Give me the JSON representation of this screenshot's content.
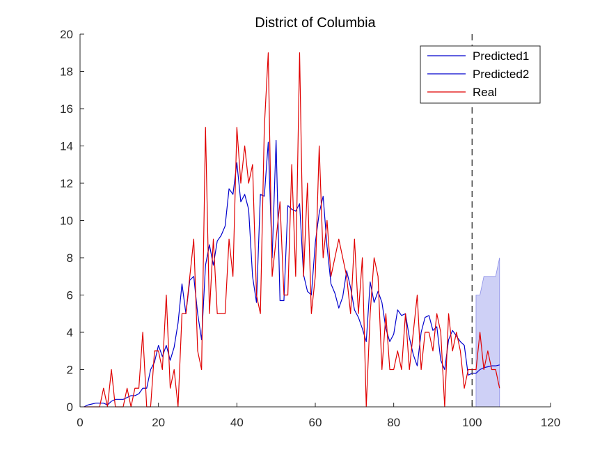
{
  "chart_data": {
    "type": "line",
    "title": "District of Columbia",
    "xlabel": "",
    "ylabel": "",
    "xlim": [
      0,
      120
    ],
    "ylim": [
      0,
      20
    ],
    "xticks": [
      0,
      20,
      40,
      60,
      80,
      100,
      120
    ],
    "yticks": [
      0,
      2,
      4,
      6,
      8,
      10,
      12,
      14,
      16,
      18,
      20
    ],
    "grid": false,
    "legend_position": "top-right",
    "vline_x": 100,
    "colors": {
      "predicted": "#0000cd",
      "real": "#e00000",
      "band": "#c6c8f5",
      "vline": "#404040"
    },
    "series": [
      {
        "name": "Predicted1",
        "color": "#0000cd",
        "x": [
          1,
          2,
          3,
          4,
          5,
          6,
          7,
          8,
          9,
          10,
          11,
          12,
          13,
          14,
          15,
          16,
          17,
          18,
          19,
          20,
          21,
          22,
          23,
          24,
          25,
          26,
          27,
          28,
          29,
          30,
          31,
          32,
          33,
          34,
          35,
          36,
          37,
          38,
          39,
          40,
          41,
          42,
          43,
          44,
          45,
          46,
          47,
          48,
          49,
          50,
          51,
          52,
          53,
          54,
          55,
          56,
          57,
          58,
          59,
          60,
          61,
          62,
          63,
          64,
          65,
          66,
          67,
          68,
          69,
          70,
          71,
          72,
          73,
          74,
          75,
          76,
          77,
          78,
          79,
          80,
          81,
          82,
          83,
          84,
          85,
          86,
          87,
          88,
          89,
          90,
          91,
          92,
          93,
          94,
          95,
          96,
          97,
          98,
          99,
          100
        ],
        "values": [
          0,
          0.1,
          0.15,
          0.2,
          0.2,
          0.2,
          0.1,
          0.3,
          0.4,
          0.4,
          0.4,
          0.5,
          0.6,
          0.6,
          0.7,
          1.0,
          1.0,
          2.0,
          2.4,
          3.3,
          2.7,
          3.3,
          2.5,
          3.2,
          4.5,
          6.6,
          5.0,
          6.8,
          7.0,
          5.0,
          3.6,
          7.6,
          8.7,
          7.6,
          8.9,
          9.2,
          9.7,
          11.7,
          11.4,
          13.1,
          11.0,
          11.4,
          10.6,
          7.0,
          5.6,
          11.4,
          11.3,
          14.2,
          8.0,
          14.3,
          5.7,
          5.7,
          10.8,
          10.6,
          10.5,
          10.9,
          7.1,
          6.2,
          6.0,
          8.8,
          10.4,
          11.3,
          8.6,
          6.6,
          6.1,
          5.3,
          5.9,
          7.3,
          6.4,
          5.2,
          4.8,
          4.2,
          3.5,
          6.7,
          5.6,
          6.2,
          5.6,
          4.2,
          3.5,
          3.9,
          5.2,
          4.9,
          5.0,
          3.7,
          2.8,
          2.2,
          4.0,
          4.8,
          4.9,
          4.1,
          4.3,
          2.5,
          2.0,
          3.6,
          4.1,
          3.8,
          3.5,
          3.3,
          1.7,
          1.8
        ]
      },
      {
        "name": "Predicted2",
        "color": "#0000cd",
        "x": [
          100,
          101,
          102,
          103,
          104,
          105,
          106,
          107
        ],
        "values": [
          1.8,
          1.8,
          2.0,
          2.1,
          2.15,
          2.2,
          2.2,
          2.25
        ]
      },
      {
        "name": "Real",
        "color": "#e00000",
        "x": [
          1,
          2,
          3,
          4,
          5,
          6,
          7,
          8,
          9,
          10,
          11,
          12,
          13,
          14,
          15,
          16,
          17,
          18,
          19,
          20,
          21,
          22,
          23,
          24,
          25,
          26,
          27,
          28,
          29,
          30,
          31,
          32,
          33,
          34,
          35,
          36,
          37,
          38,
          39,
          40,
          41,
          42,
          43,
          44,
          45,
          46,
          47,
          48,
          49,
          50,
          51,
          52,
          53,
          54,
          55,
          56,
          57,
          58,
          59,
          60,
          61,
          62,
          63,
          64,
          65,
          66,
          67,
          68,
          69,
          70,
          71,
          72,
          73,
          74,
          75,
          76,
          77,
          78,
          79,
          80,
          81,
          82,
          83,
          84,
          85,
          86,
          87,
          88,
          89,
          90,
          91,
          92,
          93,
          94,
          95,
          96,
          97,
          98,
          99,
          100,
          101,
          102,
          103,
          104,
          105,
          106,
          107
        ],
        "values": [
          0,
          0,
          0,
          0,
          0,
          1,
          0,
          2,
          0,
          0,
          0,
          1,
          0,
          1,
          1,
          4,
          0,
          0,
          3,
          3,
          2,
          6,
          1,
          2,
          0,
          5,
          5,
          7,
          9,
          3,
          2,
          15,
          5,
          9,
          5,
          5,
          5,
          9,
          7,
          15,
          12,
          14,
          12,
          13,
          6,
          5,
          15,
          19,
          7,
          9,
          11,
          6,
          6,
          13,
          7,
          19,
          7,
          12,
          5,
          7,
          14,
          8,
          10,
          7,
          8,
          9,
          8,
          7,
          5,
          9,
          5,
          8,
          0,
          5,
          8,
          7,
          2,
          5,
          2,
          2,
          3,
          2,
          5,
          2,
          4,
          6,
          2,
          4,
          4,
          3,
          5,
          4,
          0,
          5,
          3,
          4,
          3,
          1,
          2,
          2,
          2,
          4,
          2,
          3,
          2,
          2,
          1
        ]
      }
    ],
    "band": {
      "x": [
        101,
        102,
        103,
        104,
        105,
        106,
        107
      ],
      "lower": [
        0,
        0,
        0,
        0,
        0,
        0,
        0
      ],
      "upper": [
        6,
        6,
        7,
        7,
        7,
        7,
        8
      ]
    }
  }
}
